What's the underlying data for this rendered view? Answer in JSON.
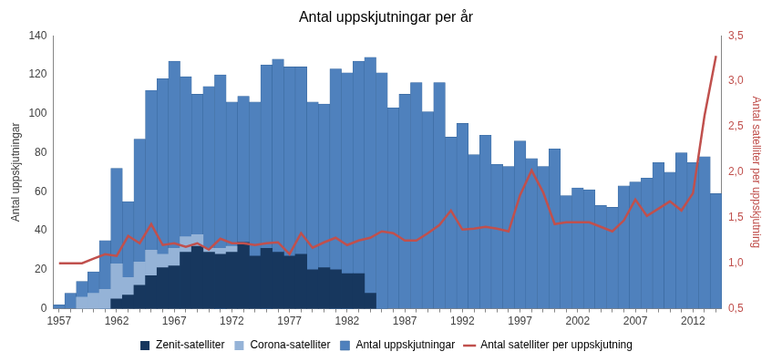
{
  "chart_data": {
    "type": "bar",
    "title": "Antal uppskjutningar per år",
    "y_label": "Antal uppskjutningar",
    "y2_label": "Antal satelliter per uppskjutning",
    "categories": [
      "1957",
      null,
      null,
      null,
      null,
      "1962",
      null,
      null,
      null,
      null,
      "1967",
      null,
      null,
      null,
      null,
      "1972",
      null,
      null,
      null,
      null,
      "1977",
      null,
      null,
      null,
      null,
      "1982",
      null,
      null,
      null,
      null,
      "1987",
      null,
      null,
      null,
      null,
      "1992",
      null,
      null,
      null,
      null,
      "1997",
      null,
      null,
      null,
      null,
      "2002",
      null,
      null,
      null,
      null,
      "2007",
      null,
      null,
      null,
      null,
      "2012",
      null,
      null
    ],
    "series": [
      {
        "name": "Zenit-satelliter",
        "type": "bar",
        "color": "#17375e",
        "stacked": true,
        "values": [
          null,
          null,
          null,
          null,
          null,
          5,
          7,
          12,
          17,
          21,
          22,
          29,
          32,
          29,
          28,
          29,
          34,
          27,
          31,
          29,
          27,
          28,
          20,
          21,
          20,
          18,
          18,
          8,
          null,
          null,
          null,
          null,
          null,
          null,
          null,
          null,
          null,
          null,
          null,
          null,
          null,
          null,
          null,
          null,
          null,
          null,
          null,
          null,
          null,
          null,
          null,
          null,
          null,
          null,
          null,
          null,
          null,
          null
        ]
      },
      {
        "name": "Corona-satelliter",
        "type": "bar",
        "color": "#95b3d7",
        "stacked": true,
        "values": [
          null,
          null,
          6,
          8,
          10,
          18,
          9,
          12,
          13,
          7,
          9,
          8,
          6,
          2,
          3,
          3,
          null,
          null,
          null,
          null,
          null,
          null,
          null,
          null,
          null,
          null,
          null,
          null,
          null,
          null,
          null,
          null,
          null,
          null,
          null,
          null,
          null,
          null,
          null,
          null,
          null,
          null,
          null,
          null,
          null,
          null,
          null,
          null,
          null,
          null,
          null,
          null,
          null,
          null,
          null,
          null,
          null,
          null
        ]
      },
      {
        "name": "Antal uppskjutningar",
        "type": "bar",
        "color": "#4f81bd",
        "values": [
          2,
          8,
          14,
          19,
          35,
          72,
          55,
          87,
          112,
          118,
          127,
          119,
          110,
          114,
          120,
          106,
          109,
          106,
          125,
          128,
          124,
          124,
          106,
          105,
          123,
          121,
          127,
          129,
          121,
          103,
          110,
          116,
          101,
          116,
          88,
          95,
          79,
          89,
          74,
          73,
          86,
          77,
          73,
          82,
          58,
          62,
          61,
          53,
          52,
          63,
          65,
          67,
          75,
          70,
          80,
          75,
          78,
          59
        ]
      },
      {
        "name": "Antal satelliter per uppskjutning",
        "type": "line",
        "axis": "y2",
        "color": "#c0504d",
        "marker": "none",
        "line_style": "solid",
        "values": [
          1.0,
          1.0,
          1.0,
          1.05,
          1.1,
          1.08,
          1.3,
          1.22,
          1.43,
          1.2,
          1.22,
          1.18,
          1.22,
          1.15,
          1.27,
          1.22,
          1.22,
          1.2,
          1.22,
          1.23,
          1.1,
          1.33,
          1.17,
          1.23,
          1.28,
          1.2,
          1.25,
          1.28,
          1.35,
          1.33,
          1.25,
          1.25,
          1.33,
          1.42,
          1.58,
          1.37,
          1.38,
          1.4,
          1.38,
          1.35,
          1.75,
          2.02,
          1.78,
          1.43,
          1.45,
          1.45,
          1.45,
          1.4,
          1.35,
          1.47,
          1.7,
          1.52,
          1.6,
          1.68,
          1.58,
          1.77,
          2.62,
          3.28
        ]
      }
    ],
    "ylim": [
      0,
      140
    ],
    "yticks": [
      0,
      20,
      40,
      60,
      80,
      100,
      120,
      140
    ],
    "y2lim": [
      0.5,
      3.5
    ],
    "y2ticks": [
      {
        "value": 0.5,
        "label": "0,5"
      },
      {
        "value": 1.0,
        "label": "1,0"
      },
      {
        "value": 1.5,
        "label": "1,5"
      },
      {
        "value": 2.0,
        "label": "2,0"
      },
      {
        "value": 2.5,
        "label": "2,5"
      },
      {
        "value": 3.0,
        "label": "3,0"
      },
      {
        "value": 3.5,
        "label": "3,5"
      }
    ],
    "grid": false,
    "legend": "bottom"
  }
}
